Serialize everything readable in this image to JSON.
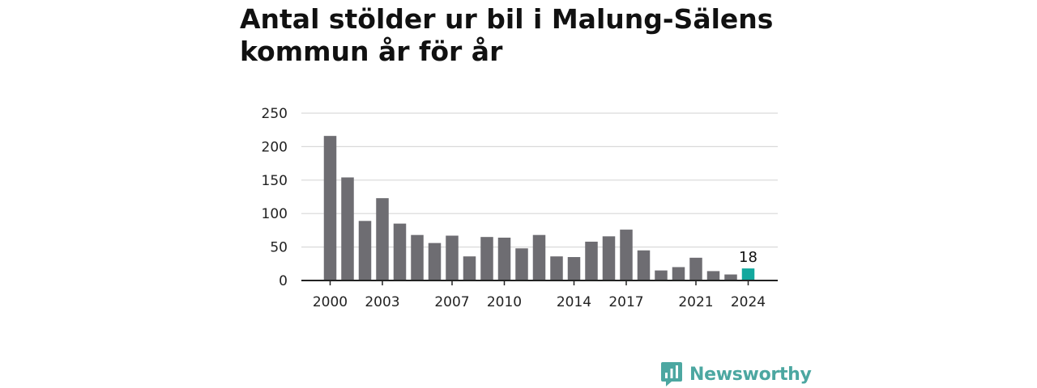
{
  "title": "Antal stölder ur bil i Malung-Sälens kommun år för år",
  "brand": {
    "name": "Newsworthy",
    "icon": "newsworthy-logo-icon",
    "color": "#4ca7a1"
  },
  "chart_data": {
    "type": "bar",
    "title": "Antal stölder ur bil i Malung-Sälens kommun år för år",
    "categories": [
      2000,
      2001,
      2002,
      2003,
      2004,
      2005,
      2006,
      2007,
      2008,
      2009,
      2010,
      2011,
      2012,
      2013,
      2014,
      2015,
      2016,
      2017,
      2018,
      2019,
      2020,
      2021,
      2022,
      2023,
      2024
    ],
    "values": [
      216,
      154,
      89,
      123,
      85,
      68,
      56,
      67,
      36,
      65,
      64,
      48,
      68,
      36,
      35,
      58,
      66,
      76,
      45,
      15,
      20,
      34,
      14,
      9,
      18
    ],
    "x_tick_labels": [
      "2000",
      "2003",
      "2007",
      "2010",
      "2014",
      "2017",
      "2021",
      "2024"
    ],
    "y_ticks": [
      0,
      50,
      100,
      150,
      200,
      250
    ],
    "ylim": [
      0,
      250
    ],
    "xlabel": "",
    "ylabel": "",
    "grid": true,
    "bar_color": "#6e6d72",
    "highlight_color": "#13a89e",
    "highlight_category": 2024,
    "highlight_label": "18"
  }
}
